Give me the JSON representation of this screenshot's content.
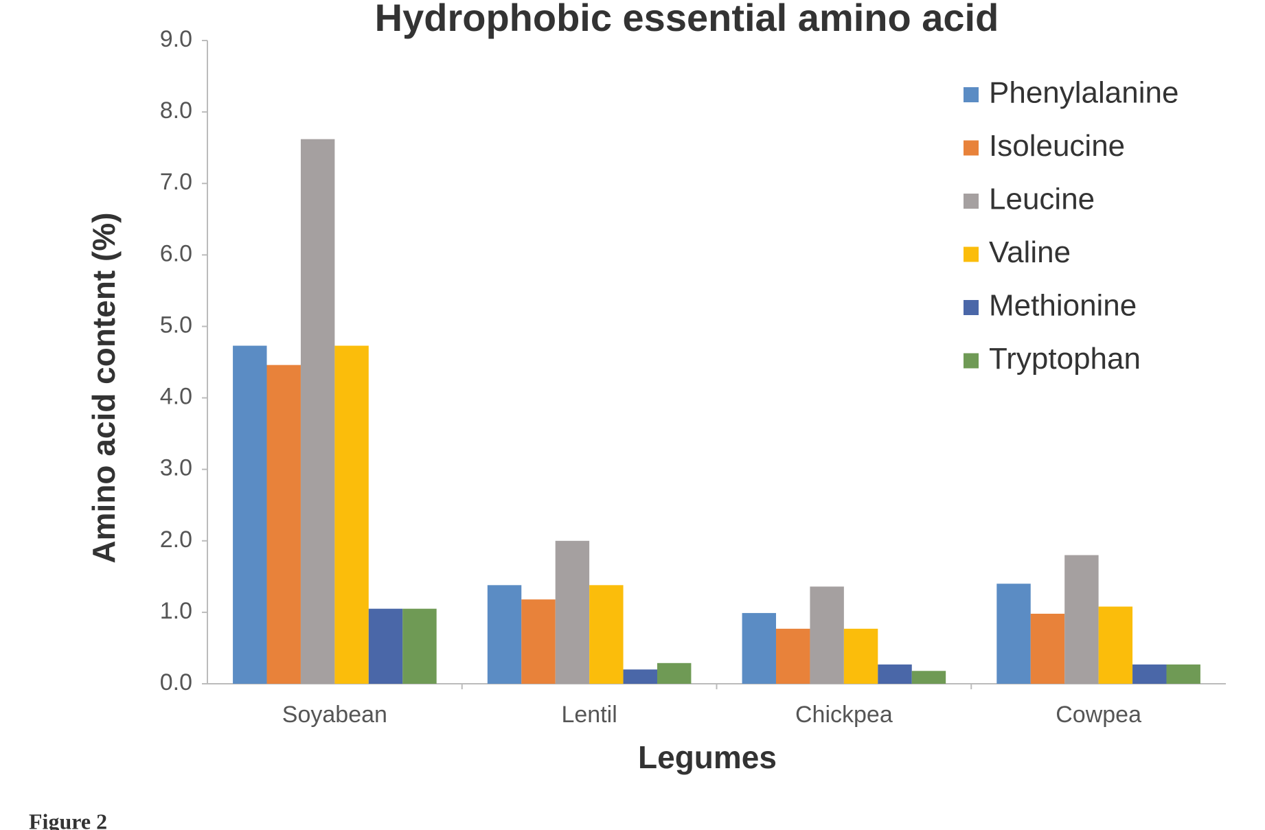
{
  "chart_data": {
    "type": "bar",
    "title": "Hydrophobic essential amino acid",
    "x_label": "Legumes",
    "y_label": "Amino acid content  (%)",
    "categories": [
      "Soyabean",
      "Lentil",
      "Chickpea",
      "Cowpea"
    ],
    "series": [
      {
        "name": "Phenylalanine",
        "color": "#5b8cc4",
        "values": [
          4.73,
          1.38,
          0.99,
          1.4
        ]
      },
      {
        "name": "Isoleucine",
        "color": "#e8823a",
        "values": [
          4.46,
          1.18,
          0.77,
          0.98
        ]
      },
      {
        "name": "Leucine",
        "color": "#a5a0a0",
        "values": [
          7.62,
          2.0,
          1.36,
          1.8
        ]
      },
      {
        "name": "Valine",
        "color": "#fbbd0b",
        "values": [
          4.73,
          1.38,
          0.77,
          1.08
        ]
      },
      {
        "name": "Methionine",
        "color": "#4a67a8",
        "values": [
          1.05,
          0.2,
          0.27,
          0.27
        ]
      },
      {
        "name": "Tryptophan",
        "color": "#6f9a55",
        "values": [
          1.05,
          0.29,
          0.18,
          0.27
        ]
      }
    ],
    "ylim": [
      0,
      9
    ],
    "yticks": [
      {
        "value": 0,
        "label": "0.0"
      },
      {
        "value": 1,
        "label": "1.0"
      },
      {
        "value": 2,
        "label": "2.0"
      },
      {
        "value": 3,
        "label": "3.0"
      },
      {
        "value": 4,
        "label": "4.0"
      },
      {
        "value": 5,
        "label": "5.0"
      },
      {
        "value": 6,
        "label": "6.0"
      },
      {
        "value": 7,
        "label": "7.0"
      },
      {
        "value": 8,
        "label": "8.0"
      },
      {
        "value": 9,
        "label": "9.0"
      }
    ],
    "grid": false,
    "legend": "top-right"
  },
  "caption": "Figure 2"
}
